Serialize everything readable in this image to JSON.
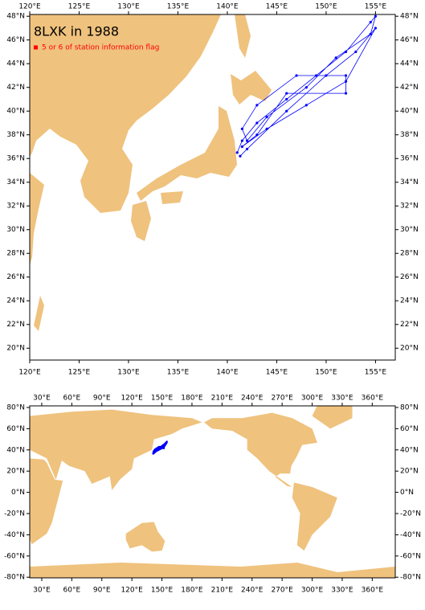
{
  "chart_data": [
    {
      "type": "map",
      "title": "8LXK in 1988",
      "legend": {
        "label": "5 or 6 of station information flag",
        "color": "#ff0000"
      },
      "land_color": "#efc27e",
      "xlim": [
        120,
        157
      ],
      "ylim": [
        19,
        48.15
      ],
      "xticks": [
        {
          "value": 120,
          "label": "120°E"
        },
        {
          "value": 125,
          "label": "125°E"
        },
        {
          "value": 130,
          "label": "130°E"
        },
        {
          "value": 135,
          "label": "135°E"
        },
        {
          "value": 140,
          "label": "140°E"
        },
        {
          "value": 145,
          "label": "145°E"
        },
        {
          "value": 150,
          "label": "150°E"
        },
        {
          "value": 155,
          "label": "155°E"
        }
      ],
      "yticks": [
        {
          "value": 20,
          "label": "20°N"
        },
        {
          "value": 22,
          "label": "22°N"
        },
        {
          "value": 24,
          "label": "24°N"
        },
        {
          "value": 26,
          "label": "26°N"
        },
        {
          "value": 28,
          "label": "28°N"
        },
        {
          "value": 30,
          "label": "30°N"
        },
        {
          "value": 32,
          "label": "32°N"
        },
        {
          "value": 34,
          "label": "34°N"
        },
        {
          "value": 36,
          "label": "36°N"
        },
        {
          "value": 38,
          "label": "38°N"
        },
        {
          "value": 40,
          "label": "40°N"
        },
        {
          "value": 42,
          "label": "42°N"
        },
        {
          "value": 44,
          "label": "44°N"
        },
        {
          "value": 46,
          "label": "46°N"
        },
        {
          "value": 48,
          "label": "48°N"
        }
      ],
      "track": {
        "color": "#0000ff",
        "lon": [
          141,
          141.5,
          143,
          146,
          149,
          152,
          154.5,
          155,
          154.5,
          151,
          148,
          144,
          142,
          141.5,
          143,
          147,
          152,
          152,
          146,
          143,
          141.5,
          144,
          148,
          152,
          155,
          153,
          150,
          146,
          142,
          141.3
        ],
        "lat": [
          36.5,
          37.5,
          39,
          41,
          43,
          45,
          47.5,
          48,
          46.5,
          44.5,
          42,
          39.5,
          37.5,
          38.5,
          40.5,
          43,
          43,
          41.5,
          41.5,
          38,
          37,
          38.5,
          40.5,
          42.5,
          47,
          45,
          43,
          40,
          36.8,
          36.2
        ]
      }
    },
    {
      "type": "map",
      "xlim": [
        18,
        383
      ],
      "ylim": [
        -80.6,
        81.5
      ],
      "xticks": [
        {
          "value": 30,
          "label": "30°E"
        },
        {
          "value": 60,
          "label": "60°E"
        },
        {
          "value": 90,
          "label": "90°E"
        },
        {
          "value": 120,
          "label": "120°E"
        },
        {
          "value": 150,
          "label": "150°E"
        },
        {
          "value": 180,
          "label": "180°E"
        },
        {
          "value": 210,
          "label": "210°E"
        },
        {
          "value": 240,
          "label": "240°E"
        },
        {
          "value": 270,
          "label": "270°E"
        },
        {
          "value": 300,
          "label": "300°E"
        },
        {
          "value": 330,
          "label": "330°E"
        },
        {
          "value": 360,
          "label": "360°E"
        }
      ],
      "yticks": [
        {
          "value": 80,
          "label": "80°N"
        },
        {
          "value": 60,
          "label": "60°N"
        },
        {
          "value": 40,
          "label": "40°N"
        },
        {
          "value": 20,
          "label": "20°N"
        },
        {
          "value": 0,
          "label": "0°N"
        },
        {
          "value": -20,
          "label": "-20°N"
        },
        {
          "value": -40,
          "label": "-40°N"
        },
        {
          "value": -60,
          "label": "-60°N"
        },
        {
          "value": -80,
          "label": "-80°N"
        }
      ]
    }
  ]
}
